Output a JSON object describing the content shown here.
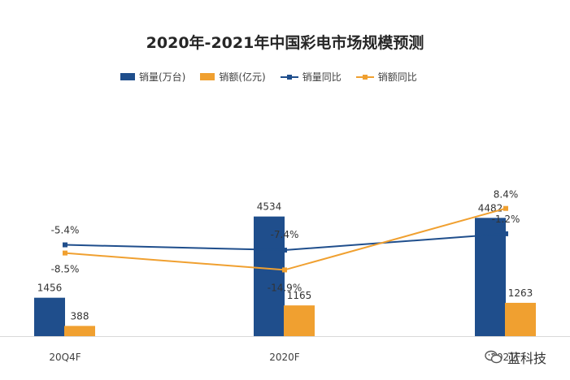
{
  "chart_data": {
    "type": "bar",
    "title": "2020年-2021年中国彩电市场规模预测",
    "categories": [
      "20Q4F",
      "2020F",
      "2021F"
    ],
    "series": [
      {
        "name": "销量(万台)",
        "kind": "bar",
        "values": [
          1456,
          4534,
          4482
        ],
        "labels": [
          "1456",
          "4534",
          "4482"
        ],
        "color": "#1F4E8C"
      },
      {
        "name": "销额(亿元)",
        "kind": "bar",
        "values": [
          388,
          1165,
          1263
        ],
        "labels": [
          "388",
          "1165",
          "1263"
        ],
        "color": "#F0A030"
      },
      {
        "name": "销量同比",
        "kind": "line",
        "values": [
          -5.4,
          -7.4,
          -1.2
        ],
        "labels": [
          "-5.4%",
          "-7.4%",
          "-1.2%"
        ],
        "color": "#1F4E8C"
      },
      {
        "name": "销额同比",
        "kind": "line",
        "values": [
          -8.5,
          -14.9,
          8.4
        ],
        "labels": [
          "-8.5%",
          "-14.9%",
          "8.4%"
        ],
        "color": "#F0A030"
      }
    ],
    "bar_ylim": [
      0,
      8000
    ],
    "line_ylim": [
      -40,
      40
    ],
    "legend_position": "top",
    "grid": false
  },
  "watermark": "蓝科技"
}
